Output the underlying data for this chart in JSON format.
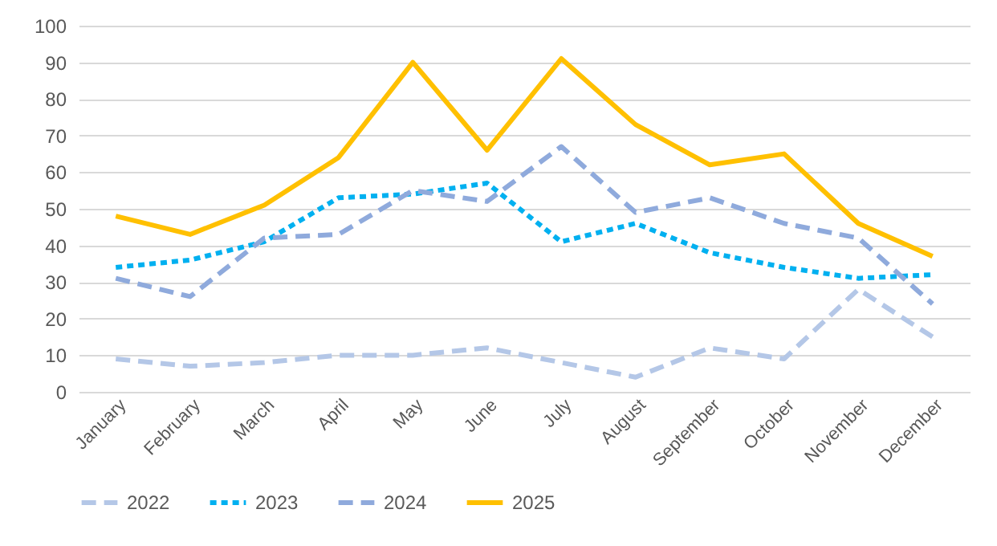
{
  "chart_data": {
    "type": "line",
    "categories": [
      "January",
      "February",
      "March",
      "April",
      "May",
      "June",
      "July",
      "August",
      "September",
      "October",
      "November",
      "December"
    ],
    "series": [
      {
        "name": "2022",
        "color": "#b4c7e7",
        "line_style": "dashed",
        "values": [
          9,
          7,
          8,
          10,
          10,
          12,
          8,
          4,
          12,
          9,
          28,
          15
        ]
      },
      {
        "name": "2023",
        "color": "#00b0f0",
        "line_style": "dotted",
        "values": [
          34,
          36,
          41,
          53,
          54,
          57,
          41,
          46,
          38,
          34,
          31,
          32
        ]
      },
      {
        "name": "2024",
        "color": "#8faadc",
        "line_style": "dashed",
        "values": [
          31,
          26,
          42,
          43,
          55,
          52,
          67,
          49,
          53,
          46,
          42,
          24
        ]
      },
      {
        "name": "2025",
        "color": "#ffc000",
        "line_style": "solid",
        "values": [
          48,
          43,
          51,
          64,
          90,
          66,
          91,
          73,
          62,
          65,
          46,
          37
        ]
      }
    ],
    "ylim": [
      0,
      100
    ],
    "yticks": [
      0,
      10,
      20,
      30,
      40,
      50,
      60,
      70,
      80,
      90,
      100
    ],
    "grid": "y",
    "legend": "bottom",
    "marker": "none"
  }
}
